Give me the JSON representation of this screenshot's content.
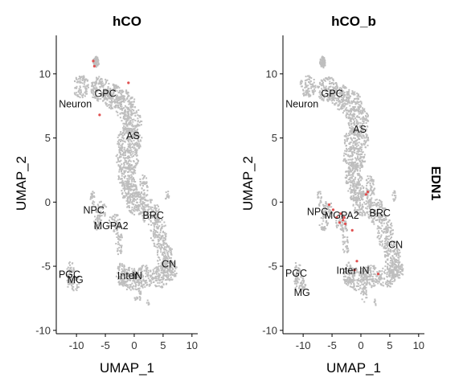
{
  "feature": "EDN1",
  "colors": {
    "background_cells": "#bebebe",
    "expressing_cells": "#e05050"
  },
  "chart_data": [
    {
      "type": "scatter",
      "title": "hCO",
      "xlabel": "UMAP_1",
      "ylabel": "UMAP_2",
      "xlim": [
        -13.5,
        11
      ],
      "ylim": [
        -10.2,
        13
      ],
      "xticks": [
        -10,
        -5,
        0,
        5,
        10
      ],
      "yticks": [
        -10,
        -5,
        0,
        5,
        10
      ],
      "tick_labels_x": [
        "-10",
        "-5",
        "0",
        "5",
        "10"
      ],
      "tick_labels_y": [
        "-10",
        "-5",
        "0",
        "5",
        "10"
      ],
      "cluster_labels": [
        {
          "text": "Neuron",
          "x": -10.2,
          "y": 7.4
        },
        {
          "text": "GPC",
          "x": -5.0,
          "y": 8.2
        },
        {
          "text": "AS",
          "x": -0.2,
          "y": 4.9
        },
        {
          "text": "NPC",
          "x": -7.0,
          "y": -0.9
        },
        {
          "text": "MGPA2",
          "x": -4.0,
          "y": -2.1
        },
        {
          "text": "BRC",
          "x": 3.3,
          "y": -1.3
        },
        {
          "text": "CN",
          "x": 6.0,
          "y": -5.1
        },
        {
          "text": "PGC",
          "x": -11.2,
          "y": -5.9
        },
        {
          "text": "MG",
          "x": -10.2,
          "y": -6.3
        },
        {
          "text": "Inter",
          "x": -1.2,
          "y": -6.0
        },
        {
          "text": "IN",
          "x": 0.5,
          "y": -6.0
        }
      ],
      "expressing_points": [
        [
          -7.1,
          11.0
        ],
        [
          -6.9,
          10.6
        ],
        [
          -1.0,
          9.3
        ],
        [
          -6.0,
          6.8
        ]
      ]
    },
    {
      "type": "scatter",
      "title": "hCO_b",
      "xlabel": "UMAP_1",
      "ylabel": "UMAP_2",
      "xlim": [
        -13.5,
        11
      ],
      "ylim": [
        -10.2,
        13
      ],
      "xticks": [
        -10,
        -5,
        0,
        5,
        10
      ],
      "yticks": [
        -10,
        -5,
        0,
        5,
        10
      ],
      "tick_labels_x": [
        "-10",
        "-5",
        "0",
        "5",
        "10"
      ],
      "tick_labels_y": [
        "-10",
        "-5",
        "0",
        "5",
        "10"
      ],
      "cluster_labels": [
        {
          "text": "Neuron",
          "x": -10.2,
          "y": 7.4
        },
        {
          "text": "GPC",
          "x": -5.0,
          "y": 8.2
        },
        {
          "text": "AS",
          "x": -0.2,
          "y": 5.4
        },
        {
          "text": "NPC",
          "x": -7.5,
          "y": -1.0
        },
        {
          "text": "MGPA2",
          "x": -3.3,
          "y": -1.3
        },
        {
          "text": "BRC",
          "x": 3.3,
          "y": -1.1
        },
        {
          "text": "CN",
          "x": 6.0,
          "y": -3.6
        },
        {
          "text": "PGC",
          "x": -11.2,
          "y": -5.8
        },
        {
          "text": "MG",
          "x": -10.2,
          "y": -7.3
        },
        {
          "text": "Inter",
          "x": -2.5,
          "y": -5.6
        },
        {
          "text": "IN",
          "x": 0.6,
          "y": -5.6
        }
      ],
      "expressing_points": [
        [
          -4.8,
          -0.6
        ],
        [
          -4.2,
          -1.2
        ],
        [
          -3.7,
          -1.6
        ],
        [
          -3.1,
          -1.4
        ],
        [
          -2.7,
          -1.7
        ],
        [
          -2.9,
          -1.2
        ],
        [
          -3.5,
          -0.9
        ],
        [
          -1.5,
          -2.2
        ],
        [
          1.2,
          0.8
        ],
        [
          0.9,
          0.6
        ],
        [
          -0.7,
          -4.6
        ],
        [
          -1.1,
          -5.3
        ],
        [
          3.0,
          -5.6
        ],
        [
          -5.5,
          -0.2
        ]
      ]
    }
  ]
}
